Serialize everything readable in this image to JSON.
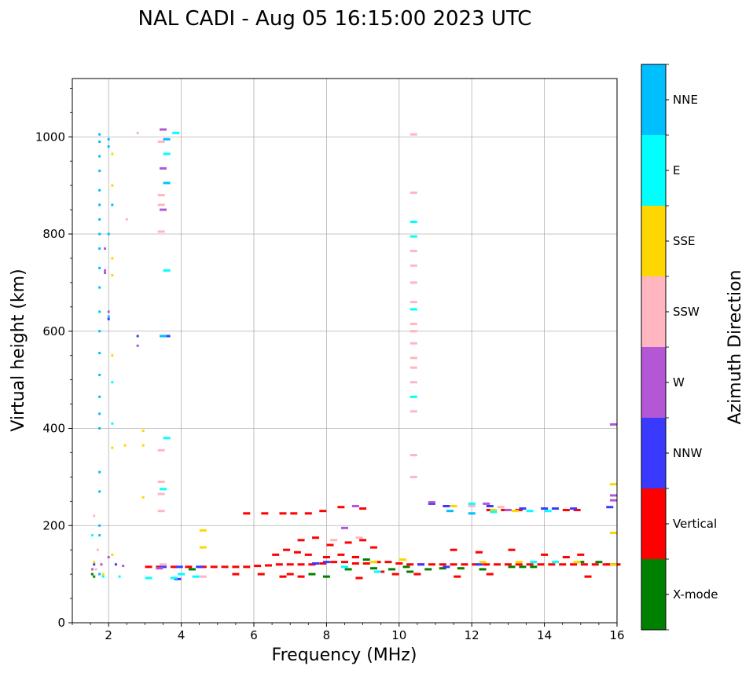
{
  "chart_data": {
    "type": "scatter",
    "title": "NAL CADI - Aug 05 16:15:00 2023 UTC",
    "xlabel": "Frequency (MHz)",
    "ylabel": "Virtual height (km)",
    "xlim": [
      1,
      16
    ],
    "ylim": [
      0,
      1120
    ],
    "x_ticks": [
      2,
      4,
      6,
      8,
      10,
      12,
      14,
      16
    ],
    "y_ticks": [
      0,
      200,
      400,
      600,
      800,
      1000
    ],
    "grid": true,
    "colorbar": {
      "label": "Azimuth Direction",
      "categories": [
        {
          "name": "X-mode",
          "color": "#008000"
        },
        {
          "name": "Vertical",
          "color": "#ff0000"
        },
        {
          "name": "NNW",
          "color": "#3a3aff"
        },
        {
          "name": "W",
          "color": "#b357d6"
        },
        {
          "name": "SSW",
          "color": "#ffb6c1"
        },
        {
          "name": "SSE",
          "color": "#ffd700"
        },
        {
          "name": "E",
          "color": "#00ffff"
        },
        {
          "name": "NNE",
          "color": "#00bfff"
        }
      ]
    },
    "series": [
      {
        "name": "X-mode",
        "points": [
          [
            1.55,
            100
          ],
          [
            1.6,
            95
          ],
          [
            4.3,
            110
          ],
          [
            7.6,
            100
          ],
          [
            8.0,
            95
          ],
          [
            8.6,
            110
          ],
          [
            9.3,
            112
          ],
          [
            9.8,
            110
          ],
          [
            10.2,
            115
          ],
          [
            10.3,
            105
          ],
          [
            10.8,
            110
          ],
          [
            11.2,
            112
          ],
          [
            11.7,
            112
          ],
          [
            12.3,
            110
          ],
          [
            13.1,
            115
          ],
          [
            13.4,
            115
          ],
          [
            13.7,
            115
          ],
          [
            15.0,
            125
          ],
          [
            15.5,
            125
          ],
          [
            15.9,
            120
          ],
          [
            8.8,
            135
          ],
          [
            9.1,
            130
          ]
        ]
      },
      {
        "name": "Vertical",
        "points": [
          [
            3.1,
            115
          ],
          [
            3.4,
            115
          ],
          [
            3.8,
            115
          ],
          [
            4.2,
            115
          ],
          [
            4.6,
            115
          ],
          [
            4.9,
            115
          ],
          [
            5.2,
            115
          ],
          [
            5.5,
            115
          ],
          [
            5.8,
            115
          ],
          [
            6.1,
            117
          ],
          [
            6.4,
            118
          ],
          [
            6.7,
            120
          ],
          [
            7.0,
            120
          ],
          [
            7.3,
            120
          ],
          [
            7.6,
            120
          ],
          [
            7.9,
            122
          ],
          [
            8.2,
            125
          ],
          [
            8.5,
            125
          ],
          [
            8.8,
            122
          ],
          [
            9.1,
            122
          ],
          [
            9.4,
            125
          ],
          [
            9.7,
            125
          ],
          [
            10.0,
            122
          ],
          [
            10.3,
            120
          ],
          [
            10.6,
            120
          ],
          [
            10.9,
            120
          ],
          [
            11.2,
            120
          ],
          [
            11.5,
            120
          ],
          [
            11.8,
            120
          ],
          [
            12.1,
            120
          ],
          [
            12.4,
            120
          ],
          [
            12.7,
            120
          ],
          [
            13.0,
            120
          ],
          [
            13.3,
            120
          ],
          [
            13.6,
            120
          ],
          [
            13.9,
            120
          ],
          [
            14.2,
            120
          ],
          [
            14.5,
            120
          ],
          [
            14.8,
            120
          ],
          [
            15.1,
            120
          ],
          [
            15.4,
            120
          ],
          [
            15.7,
            120
          ],
          [
            16.0,
            120
          ],
          [
            8.0,
            135
          ],
          [
            8.4,
            140
          ],
          [
            8.8,
            135
          ],
          [
            7.5,
            140
          ],
          [
            7.2,
            145
          ],
          [
            6.9,
            150
          ],
          [
            6.6,
            140
          ],
          [
            8.1,
            160
          ],
          [
            8.6,
            165
          ],
          [
            9.0,
            170
          ],
          [
            9.3,
            155
          ],
          [
            7.3,
            170
          ],
          [
            7.7,
            175
          ],
          [
            5.8,
            225
          ],
          [
            6.3,
            225
          ],
          [
            6.8,
            225
          ],
          [
            7.1,
            225
          ],
          [
            7.5,
            225
          ],
          [
            7.9,
            230
          ],
          [
            8.4,
            238
          ],
          [
            9.0,
            235
          ],
          [
            12.5,
            232
          ],
          [
            12.9,
            232
          ],
          [
            13.3,
            232
          ],
          [
            14.6,
            232
          ],
          [
            14.9,
            232
          ],
          [
            11.5,
            150
          ],
          [
            12.2,
            145
          ],
          [
            13.1,
            150
          ],
          [
            14.0,
            140
          ],
          [
            14.6,
            135
          ],
          [
            15.0,
            140
          ],
          [
            15.2,
            95
          ],
          [
            12.5,
            100
          ],
          [
            6.8,
            95
          ],
          [
            7.3,
            95
          ],
          [
            8.9,
            92
          ],
          [
            9.5,
            105
          ],
          [
            10.5,
            100
          ],
          [
            11.6,
            95
          ],
          [
            5.5,
            100
          ],
          [
            6.2,
            100
          ],
          [
            7.0,
            100
          ],
          [
            9.9,
            100
          ],
          [
            15.8,
            120
          ]
        ]
      },
      {
        "name": "NNW",
        "points": [
          [
            1.6,
            120
          ],
          [
            2.2,
            120
          ],
          [
            3.5,
            115
          ],
          [
            3.95,
            115
          ],
          [
            4.5,
            115
          ],
          [
            7.7,
            122
          ],
          [
            8.0,
            125
          ],
          [
            10.6,
            120
          ],
          [
            11.3,
            115
          ],
          [
            12.2,
            120
          ],
          [
            13.4,
            235
          ],
          [
            14.0,
            235
          ],
          [
            14.3,
            235
          ],
          [
            14.8,
            235
          ],
          [
            10.9,
            245
          ],
          [
            11.3,
            240
          ],
          [
            12.5,
            240
          ],
          [
            2.8,
            590
          ],
          [
            3.6,
            590
          ],
          [
            2.0,
            625
          ],
          [
            15.8,
            238
          ],
          [
            3.9,
            90
          ]
        ]
      },
      {
        "name": "W",
        "points": [
          [
            1.55,
            110
          ],
          [
            1.8,
            120
          ],
          [
            2.0,
            135
          ],
          [
            2.4,
            117
          ],
          [
            3.4,
            112
          ],
          [
            8.8,
            240
          ],
          [
            8.5,
            195
          ],
          [
            10.9,
            248
          ],
          [
            12.4,
            245
          ],
          [
            13.0,
            232
          ],
          [
            15.9,
            262
          ],
          [
            15.9,
            252
          ],
          [
            15.9,
            408
          ],
          [
            2.8,
            570
          ],
          [
            1.9,
            720
          ],
          [
            2.0,
            640
          ],
          [
            3.5,
            850
          ],
          [
            3.5,
            935
          ],
          [
            3.5,
            1015
          ],
          [
            1.9,
            770
          ],
          [
            1.9,
            725
          ]
        ]
      },
      {
        "name": "SSW",
        "points": [
          [
            1.6,
            220
          ],
          [
            1.7,
            150
          ],
          [
            1.65,
            110
          ],
          [
            4.6,
            95
          ],
          [
            8.2,
            170
          ],
          [
            8.9,
            175
          ],
          [
            10.4,
            300
          ],
          [
            10.4,
            345
          ],
          [
            10.4,
            435
          ],
          [
            10.4,
            495
          ],
          [
            10.4,
            525
          ],
          [
            10.4,
            545
          ],
          [
            10.4,
            575
          ],
          [
            10.4,
            600
          ],
          [
            10.4,
            615
          ],
          [
            10.4,
            660
          ],
          [
            10.4,
            700
          ],
          [
            10.4,
            735
          ],
          [
            10.4,
            765
          ],
          [
            10.4,
            885
          ],
          [
            10.4,
            1005
          ],
          [
            3.45,
            230
          ],
          [
            3.45,
            265
          ],
          [
            3.45,
            290
          ],
          [
            3.45,
            355
          ],
          [
            3.45,
            805
          ],
          [
            3.45,
            860
          ],
          [
            3.45,
            880
          ],
          [
            3.45,
            990
          ],
          [
            2.5,
            830
          ],
          [
            2.8,
            1008
          ],
          [
            12.0,
            240
          ],
          [
            12.8,
            238
          ],
          [
            3.5,
            120
          ]
        ]
      },
      {
        "name": "SSE",
        "points": [
          [
            1.6,
            125
          ],
          [
            1.85,
            100
          ],
          [
            2.1,
            140
          ],
          [
            2.1,
            360
          ],
          [
            2.45,
            365
          ],
          [
            2.95,
            365
          ],
          [
            2.95,
            395
          ],
          [
            2.95,
            258
          ],
          [
            2.1,
            550
          ],
          [
            2.1,
            715
          ],
          [
            2.1,
            750
          ],
          [
            2.1,
            900
          ],
          [
            2.1,
            965
          ],
          [
            4.6,
            190
          ],
          [
            4.6,
            155
          ],
          [
            9.3,
            125
          ],
          [
            10.1,
            130
          ],
          [
            12.3,
            125
          ],
          [
            13.3,
            125
          ],
          [
            14.9,
            125
          ],
          [
            15.9,
            120
          ],
          [
            15.9,
            285
          ],
          [
            15.9,
            185
          ],
          [
            11.5,
            240
          ],
          [
            13.2,
            230
          ],
          [
            12.6,
            232
          ]
        ]
      },
      {
        "name": "E",
        "points": [
          [
            1.55,
            180
          ],
          [
            1.85,
            95
          ],
          [
            2.3,
            95
          ],
          [
            3.1,
            92
          ],
          [
            3.8,
            92
          ],
          [
            4.0,
            100
          ],
          [
            4.4,
            95
          ],
          [
            8.5,
            115
          ],
          [
            9.4,
            105
          ],
          [
            13.7,
            125
          ],
          [
            14.3,
            125
          ],
          [
            10.4,
            465
          ],
          [
            10.4,
            645
          ],
          [
            10.4,
            795
          ],
          [
            10.4,
            825
          ],
          [
            3.5,
            275
          ],
          [
            3.6,
            380
          ],
          [
            3.6,
            725
          ],
          [
            3.6,
            965
          ],
          [
            3.85,
            1008
          ],
          [
            2.1,
            495
          ],
          [
            2.1,
            410
          ],
          [
            12.0,
            245
          ],
          [
            12.6,
            228
          ],
          [
            13.6,
            230
          ],
          [
            14.1,
            230
          ]
        ]
      },
      {
        "name": "NNE",
        "points": [
          [
            1.75,
            100
          ],
          [
            1.75,
            180
          ],
          [
            1.75,
            200
          ],
          [
            1.75,
            270
          ],
          [
            1.75,
            310
          ],
          [
            1.75,
            400
          ],
          [
            1.75,
            430
          ],
          [
            1.75,
            465
          ],
          [
            1.75,
            510
          ],
          [
            1.75,
            555
          ],
          [
            1.75,
            600
          ],
          [
            1.75,
            640
          ],
          [
            1.75,
            690
          ],
          [
            1.75,
            730
          ],
          [
            1.75,
            770
          ],
          [
            1.75,
            800
          ],
          [
            1.75,
            830
          ],
          [
            1.75,
            860
          ],
          [
            1.75,
            890
          ],
          [
            1.75,
            930
          ],
          [
            1.75,
            960
          ],
          [
            1.75,
            990
          ],
          [
            1.75,
            1005
          ],
          [
            2.0,
            630
          ],
          [
            2.0,
            980
          ],
          [
            2.0,
            995
          ],
          [
            2.0,
            800
          ],
          [
            2.1,
            860
          ],
          [
            3.5,
            590
          ],
          [
            3.6,
            905
          ],
          [
            3.6,
            995
          ],
          [
            12.0,
            225
          ],
          [
            11.4,
            230
          ]
        ]
      }
    ]
  }
}
